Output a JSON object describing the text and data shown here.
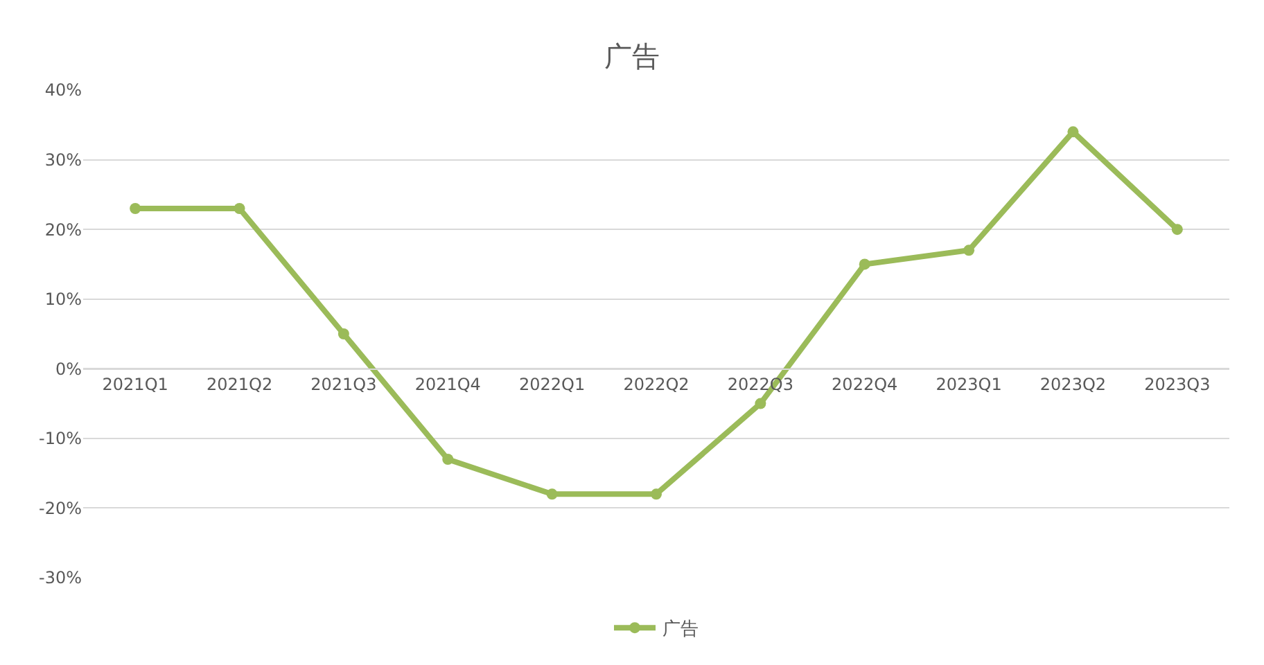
{
  "chart_data": {
    "type": "line",
    "title": "广告",
    "categories": [
      "2021Q1",
      "2021Q2",
      "2021Q3",
      "2021Q4",
      "2022Q1",
      "2022Q2",
      "2022Q3",
      "2022Q4",
      "2023Q1",
      "2023Q2",
      "2023Q3"
    ],
    "series": [
      {
        "name": "广告",
        "color": "#9bbb59",
        "values": [
          23,
          23,
          5,
          -13,
          -18,
          -18,
          -5,
          15,
          17,
          34,
          20
        ]
      }
    ],
    "ylim": [
      -30,
      40
    ],
    "yticks": [
      {
        "value": -30,
        "label": "-30%"
      },
      {
        "value": -20,
        "label": "-20%"
      },
      {
        "value": -10,
        "label": "-10%"
      },
      {
        "value": 0,
        "label": "0%"
      },
      {
        "value": 10,
        "label": "10%"
      },
      {
        "value": 20,
        "label": "20%"
      },
      {
        "value": 30,
        "label": "30%"
      },
      {
        "value": 40,
        "label": "40%"
      }
    ],
    "grid": "y",
    "legend": "bottom",
    "marker": "circle",
    "line_style": "solid"
  }
}
